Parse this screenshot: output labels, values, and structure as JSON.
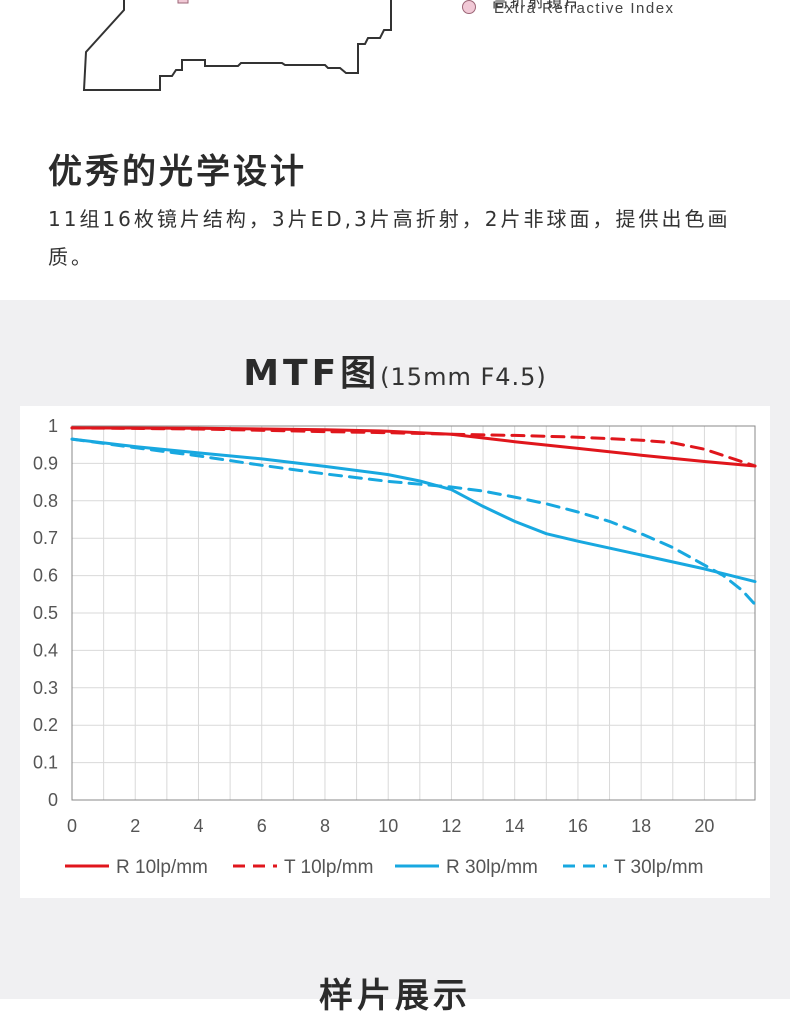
{
  "lens_legend": {
    "items": [
      {
        "label_cn": "高折射镜片",
        "label_en": "Extra Refractive Index",
        "color": "#f1c9d6"
      }
    ]
  },
  "optical_design": {
    "title": "优秀的光学设计",
    "description": "11组16枚镜片结构，3片ED,3片高折射，2片非球面，提供出色画质。"
  },
  "mtf": {
    "title": "MTF图",
    "subtitle": "(15mm F4.5)"
  },
  "samples": {
    "title": "样片展示"
  },
  "chart_data": {
    "type": "line",
    "title": "",
    "xlabel": "",
    "ylabel": "",
    "xlim": [
      0,
      21.6
    ],
    "ylim": [
      0,
      1
    ],
    "grid": true,
    "legend_position": "bottom",
    "x_ticks": [
      "0",
      "2",
      "4",
      "6",
      "8",
      "10",
      "12",
      "14",
      "16",
      "18",
      "20"
    ],
    "y_ticks": [
      "0",
      "0.1",
      "0.2",
      "0.3",
      "0.4",
      "0.5",
      "0.6",
      "0.7",
      "0.8",
      "0.9",
      "1"
    ],
    "series": [
      {
        "name": "R 10lp/mm",
        "color": "#e0161c",
        "dashed": false,
        "x": [
          0,
          4,
          8,
          10,
          12,
          14,
          16,
          18,
          20,
          21.6
        ],
        "y": [
          0.995,
          0.994,
          0.99,
          0.986,
          0.978,
          0.958,
          0.94,
          0.922,
          0.905,
          0.893
        ]
      },
      {
        "name": "T 10lp/mm",
        "color": "#e0161c",
        "dashed": true,
        "x": [
          0,
          4,
          8,
          10,
          12,
          14,
          16,
          18,
          19,
          20,
          21,
          21.6
        ],
        "y": [
          0.995,
          0.992,
          0.985,
          0.982,
          0.978,
          0.975,
          0.97,
          0.962,
          0.955,
          0.938,
          0.91,
          0.893
        ]
      },
      {
        "name": "R 30lp/mm",
        "color": "#18a8e0",
        "dashed": false,
        "x": [
          0,
          2,
          4,
          6,
          8,
          10,
          11,
          12,
          13,
          14,
          15,
          16,
          18,
          20,
          21.6
        ],
        "y": [
          0.965,
          0.945,
          0.928,
          0.912,
          0.892,
          0.87,
          0.853,
          0.83,
          0.785,
          0.745,
          0.712,
          0.692,
          0.655,
          0.618,
          0.584
        ]
      },
      {
        "name": "T 30lp/mm",
        "color": "#18a8e0",
        "dashed": true,
        "x": [
          0,
          2,
          4,
          6,
          8,
          10,
          12,
          13,
          14,
          15,
          16,
          17,
          18,
          19,
          20,
          20.6,
          21.2,
          21.6
        ],
        "y": [
          0.965,
          0.942,
          0.92,
          0.895,
          0.872,
          0.852,
          0.837,
          0.826,
          0.81,
          0.792,
          0.77,
          0.745,
          0.712,
          0.675,
          0.628,
          0.6,
          0.56,
          0.523
        ]
      }
    ]
  }
}
